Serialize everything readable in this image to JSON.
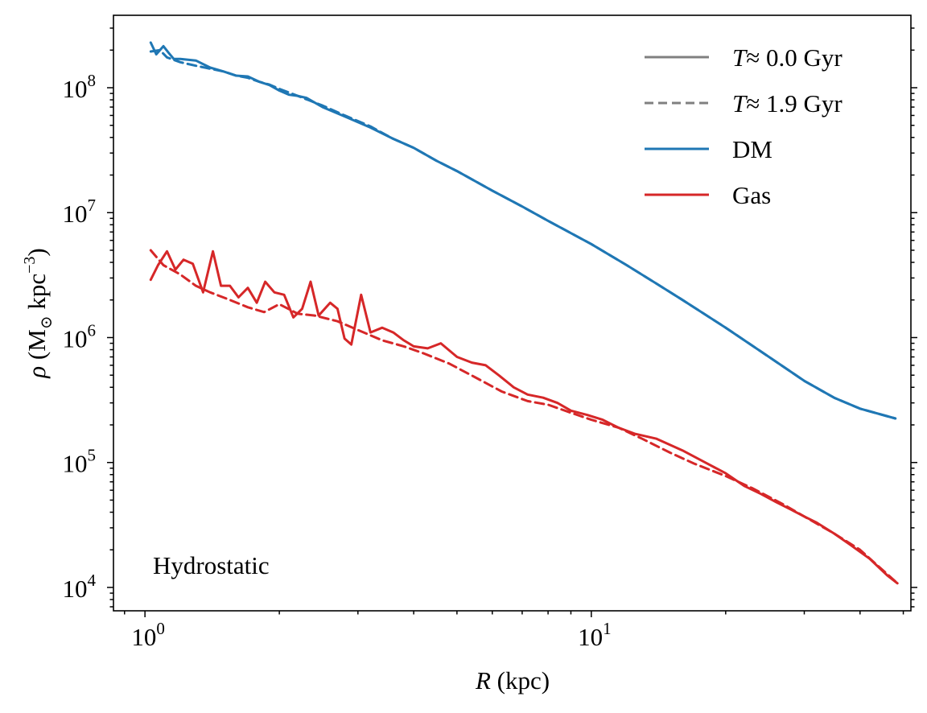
{
  "chart_data": {
    "type": "line",
    "xlabel": "R (kpc)",
    "ylabel": "ρ (M⊙ kpc⁻³)",
    "xscale": "log",
    "yscale": "log",
    "xlim": [
      0.85,
      52
    ],
    "ylim": [
      6500,
      380000000
    ],
    "grid": false,
    "legend_position": "top-right",
    "annotation": "Hydrostatic",
    "x_ticks": [
      {
        "base": "10",
        "exp": "0",
        "value": 1
      },
      {
        "base": "10",
        "exp": "1",
        "value": 10
      }
    ],
    "y_ticks": [
      {
        "base": "10",
        "exp": "4",
        "value": 10000
      },
      {
        "base": "10",
        "exp": "5",
        "value": 100000
      },
      {
        "base": "10",
        "exp": "6",
        "value": 1000000
      },
      {
        "base": "10",
        "exp": "7",
        "value": 10000000
      },
      {
        "base": "10",
        "exp": "8",
        "value": 100000000
      }
    ],
    "legend": [
      {
        "label_italic": "T",
        "label_rest": "≈ 0.0 Gyr",
        "color": "#808080",
        "style": "solid"
      },
      {
        "label_italic": "T",
        "label_rest": "≈ 1.9 Gyr",
        "color": "#808080",
        "style": "dashed"
      },
      {
        "label_italic": "",
        "label_rest": "DM",
        "color": "#1f77b4",
        "style": "solid"
      },
      {
        "label_italic": "",
        "label_rest": "Gas",
        "color": "#d62728",
        "style": "solid"
      }
    ],
    "series": [
      {
        "component": "DM",
        "time": "T≈0.0 Gyr",
        "color": "#1f77b4",
        "style": "solid",
        "x": [
          1.03,
          1.06,
          1.1,
          1.13,
          1.16,
          1.2,
          1.3,
          1.4,
          1.5,
          1.6,
          1.7,
          1.8,
          1.9,
          2.0,
          2.1,
          2.2,
          2.3,
          2.5,
          2.8,
          3.2,
          3.6,
          4.0,
          4.5,
          5.0,
          6.0,
          7.0,
          8.0,
          10.0,
          12.0,
          14.0,
          16.0,
          20.0,
          25.0,
          30.0,
          35.0,
          40.0,
          48.0
        ],
        "y": [
          230000000.0,
          185000000.0,
          215000000.0,
          190000000.0,
          170000000.0,
          170000000.0,
          165000000.0,
          145000000.0,
          135000000.0,
          125000000.0,
          123000000.0,
          112000000.0,
          105000000.0,
          95000000.0,
          88000000.0,
          86000000.0,
          83000000.0,
          70000000.0,
          59000000.0,
          48000000.0,
          39000000.0,
          33000000.0,
          26000000.0,
          21500000.0,
          15000000.0,
          11200000.0,
          8600000.0,
          5600000.0,
          3800000.0,
          2700000.0,
          2000000.0,
          1200000.0,
          700000.0,
          450000.0,
          330000.0,
          270000.0,
          225000.0
        ]
      },
      {
        "component": "DM",
        "time": "T≈1.9 Gyr",
        "color": "#1f77b4",
        "style": "dashed",
        "x": [
          1.03,
          1.08,
          1.12,
          1.2,
          1.3,
          1.4,
          1.5,
          1.6,
          1.7,
          1.8,
          1.9,
          2.0,
          2.2,
          2.5,
          2.8,
          3.2,
          3.6,
          4.0,
          4.5,
          5.0,
          6.0,
          7.0,
          8.0,
          10.0,
          12.0,
          14.0,
          16.0,
          20.0,
          25.0,
          30.0,
          35.0,
          40.0,
          48.0
        ],
        "y": [
          195000000.0,
          200000000.0,
          175000000.0,
          160000000.0,
          150000000.0,
          142000000.0,
          135000000.0,
          125000000.0,
          120000000.0,
          112000000.0,
          106000000.0,
          98000000.0,
          86000000.0,
          72000000.0,
          60000000.0,
          49000000.0,
          39000000.0,
          33000000.0,
          26000000.0,
          21500000.0,
          15000000.0,
          11200000.0,
          8600000.0,
          5600000.0,
          3800000.0,
          2700000.0,
          2000000.0,
          1200000.0,
          700000.0,
          450000.0,
          330000.0,
          270000.0,
          225000.0
        ]
      },
      {
        "component": "Gas",
        "time": "T≈0.0 Gyr",
        "color": "#d62728",
        "style": "solid",
        "x": [
          1.03,
          1.07,
          1.12,
          1.17,
          1.22,
          1.28,
          1.35,
          1.42,
          1.48,
          1.55,
          1.62,
          1.7,
          1.78,
          1.86,
          1.95,
          2.05,
          2.15,
          2.25,
          2.35,
          2.45,
          2.6,
          2.7,
          2.8,
          2.9,
          3.05,
          3.2,
          3.4,
          3.6,
          3.8,
          4.0,
          4.3,
          4.6,
          5.0,
          5.4,
          5.8,
          6.2,
          6.7,
          7.2,
          7.8,
          8.4,
          9.0,
          9.8,
          10.6,
          11.5,
          12.5,
          14.0,
          16.0,
          18.0,
          20.0,
          22.0,
          24.0,
          26.0,
          28.0,
          30.0,
          32.0,
          35.0,
          38.0,
          42.0,
          46.0,
          48.5
        ],
        "y": [
          2900000.0,
          3800000.0,
          4900000.0,
          3500000.0,
          4200000.0,
          3900000.0,
          2300000.0,
          4900000.0,
          2600000.0,
          2600000.0,
          2100000.0,
          2500000.0,
          1900000.0,
          2800000.0,
          2300000.0,
          2200000.0,
          1450000.0,
          1700000.0,
          2800000.0,
          1500000.0,
          1900000.0,
          1700000.0,
          980000.0,
          880000.0,
          2200000.0,
          1100000.0,
          1200000.0,
          1100000.0,
          950000.0,
          850000.0,
          820000.0,
          900000.0,
          700000.0,
          630000.0,
          600000.0,
          500000.0,
          400000.0,
          350000.0,
          330000.0,
          300000.0,
          260000.0,
          240000.0,
          220000.0,
          190000.0,
          170000.0,
          155000.0,
          125000.0,
          100000.0,
          82000.0,
          65000.0,
          56000.0,
          48000.0,
          42000.0,
          37000.0,
          33000.0,
          27000.0,
          22000.0,
          17000.0,
          12500.0,
          10800.0
        ]
      },
      {
        "component": "Gas",
        "time": "T≈1.9 Gyr",
        "color": "#d62728",
        "style": "dashed",
        "x": [
          1.03,
          1.1,
          1.2,
          1.3,
          1.4,
          1.55,
          1.7,
          1.85,
          2.0,
          2.2,
          2.4,
          2.7,
          3.0,
          3.4,
          3.8,
          4.2,
          4.8,
          5.5,
          6.3,
          7.2,
          8.0,
          9.0,
          10.0,
          11.5,
          13.0,
          15.0,
          17.0,
          20.0,
          23.0,
          27.0,
          30.0,
          35.0,
          40.0,
          48.5
        ],
        "y": [
          5000000.0,
          3800000.0,
          3200000.0,
          2600000.0,
          2300000.0,
          2000000.0,
          1750000.0,
          1600000.0,
          1850000.0,
          1550000.0,
          1500000.0,
          1350000.0,
          1150000.0,
          950000.0,
          850000.0,
          750000.0,
          620000.0,
          480000.0,
          370000.0,
          310000.0,
          290000.0,
          250000.0,
          220000.0,
          190000.0,
          155000.0,
          120000.0,
          98000.0,
          78000.0,
          62000.0,
          46000.0,
          37000.0,
          27000.0,
          20000.0,
          10800.0
        ]
      }
    ]
  }
}
